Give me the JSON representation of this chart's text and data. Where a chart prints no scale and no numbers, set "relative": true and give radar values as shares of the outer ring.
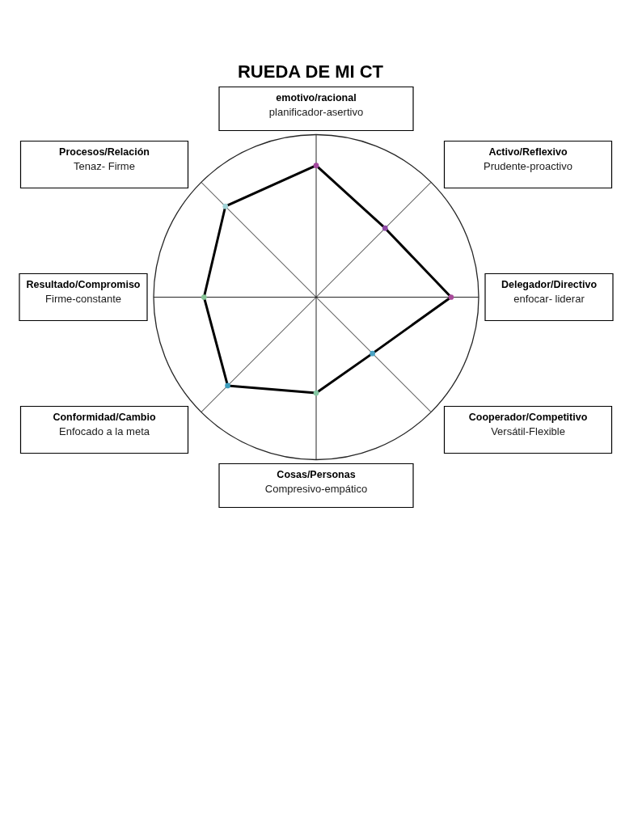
{
  "chart_data": {
    "type": "radar",
    "title": "RUEDA DE MI CT",
    "categories": [
      "emotivo/racional",
      "Activo/Reflexivo",
      "Delegador/Directivo",
      "Cooperador/Competitivo",
      "Cosas/Personas",
      "Conformidad/Cambio",
      "Resultado/Compromiso",
      "Procesos/Relación"
    ],
    "series": [
      {
        "color": "#000000",
        "colors": [
          "#a4489e",
          "#8e4aa6",
          "#a8489a",
          "#4aa3c4",
          "#86c8a4",
          "#3c9cbc",
          "#86c496",
          "#a2d4d8"
        ],
        "values": [
          0.81,
          0.6,
          0.83,
          0.49,
          0.59,
          0.77,
          0.69,
          0.79
        ]
      }
    ],
    "relative": true,
    "grid": true,
    "marker": "circle",
    "line_style": "solid",
    "annotations": [
      "planificador-asertivo",
      "Prudente-proactivo",
      "enfocar- liderar",
      "Versátil-Flexible",
      "Compresivo-empático",
      "Enfocado a la meta",
      "Firme-constante",
      "Tenaz- Firme"
    ]
  }
}
